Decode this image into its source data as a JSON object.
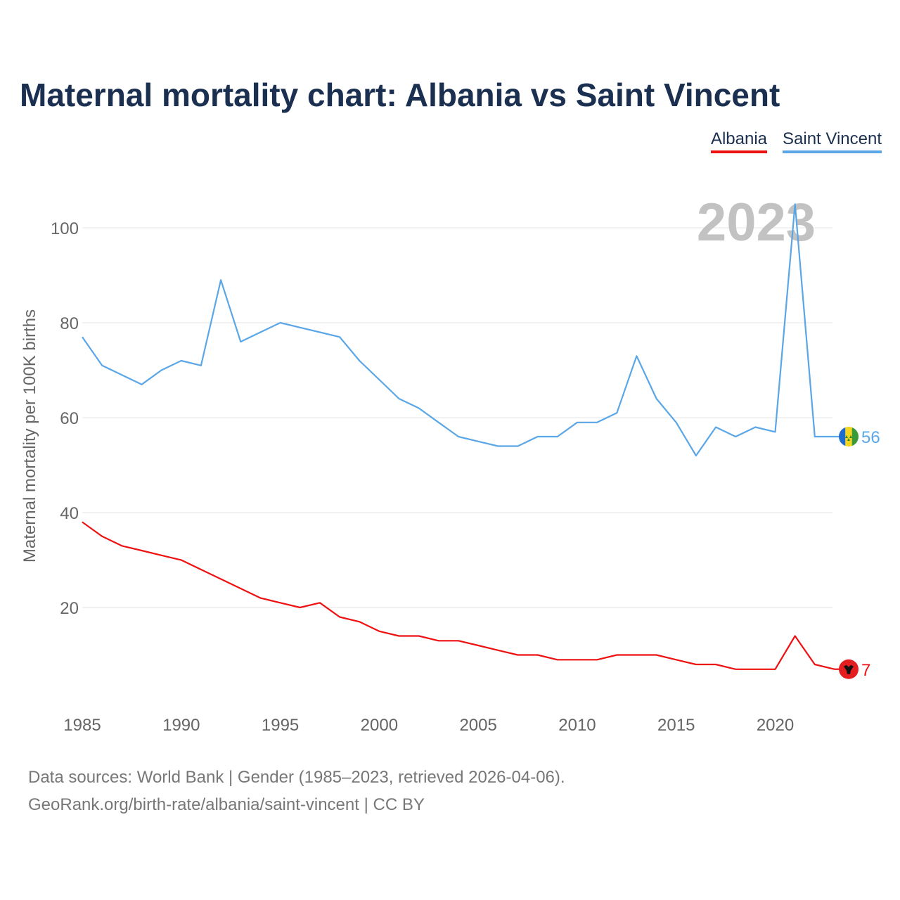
{
  "title": "Maternal mortality chart: Albania vs Saint Vincent",
  "legend": [
    {
      "label": "Albania",
      "color": "#ee1111"
    },
    {
      "label": "Saint Vincent",
      "color": "#5aa6e6"
    }
  ],
  "year_watermark": "2023",
  "footer": {
    "source": "Data sources: World Bank | Gender (1985–2023, retrieved 2026-04-06).",
    "credit": "GeoRank.org/birth-rate/albania/saint-vincent | CC BY"
  },
  "chart_data": {
    "type": "line",
    "title": "Maternal mortality chart: Albania vs Saint Vincent",
    "xlabel": "",
    "ylabel": "Maternal mortality per 100K births",
    "xlim": [
      1985,
      2023
    ],
    "ylim": [
      0,
      105
    ],
    "grid": true,
    "x_ticks": [
      1985,
      1990,
      1995,
      2000,
      2005,
      2010,
      2015,
      2020
    ],
    "y_ticks": [
      20,
      40,
      60,
      80,
      100
    ],
    "x": [
      1985,
      1986,
      1987,
      1988,
      1989,
      1990,
      1991,
      1992,
      1993,
      1994,
      1995,
      1996,
      1997,
      1998,
      1999,
      2000,
      2001,
      2002,
      2003,
      2004,
      2005,
      2006,
      2007,
      2008,
      2009,
      2010,
      2011,
      2012,
      2013,
      2014,
      2015,
      2016,
      2017,
      2018,
      2019,
      2020,
      2021,
      2022,
      2023
    ],
    "series": [
      {
        "name": "Albania",
        "color": "#ee1111",
        "end_label": "7",
        "flag": "albania-flag",
        "values": [
          38,
          35,
          33,
          32,
          31,
          30,
          28,
          26,
          24,
          22,
          21,
          20,
          21,
          18,
          17,
          15,
          14,
          14,
          13,
          13,
          12,
          11,
          10,
          10,
          9,
          9,
          9,
          10,
          10,
          10,
          9,
          8,
          8,
          7,
          7,
          7,
          14,
          8,
          7
        ]
      },
      {
        "name": "Saint Vincent",
        "color": "#5aa6e6",
        "end_label": "56",
        "flag": "saint-vincent-flag",
        "values": [
          77,
          71,
          69,
          67,
          70,
          72,
          71,
          89,
          76,
          78,
          80,
          79,
          78,
          77,
          72,
          68,
          64,
          62,
          59,
          56,
          55,
          54,
          54,
          56,
          56,
          59,
          59,
          61,
          73,
          64,
          59,
          52,
          58,
          56,
          58,
          57,
          105,
          56,
          56
        ]
      }
    ]
  }
}
